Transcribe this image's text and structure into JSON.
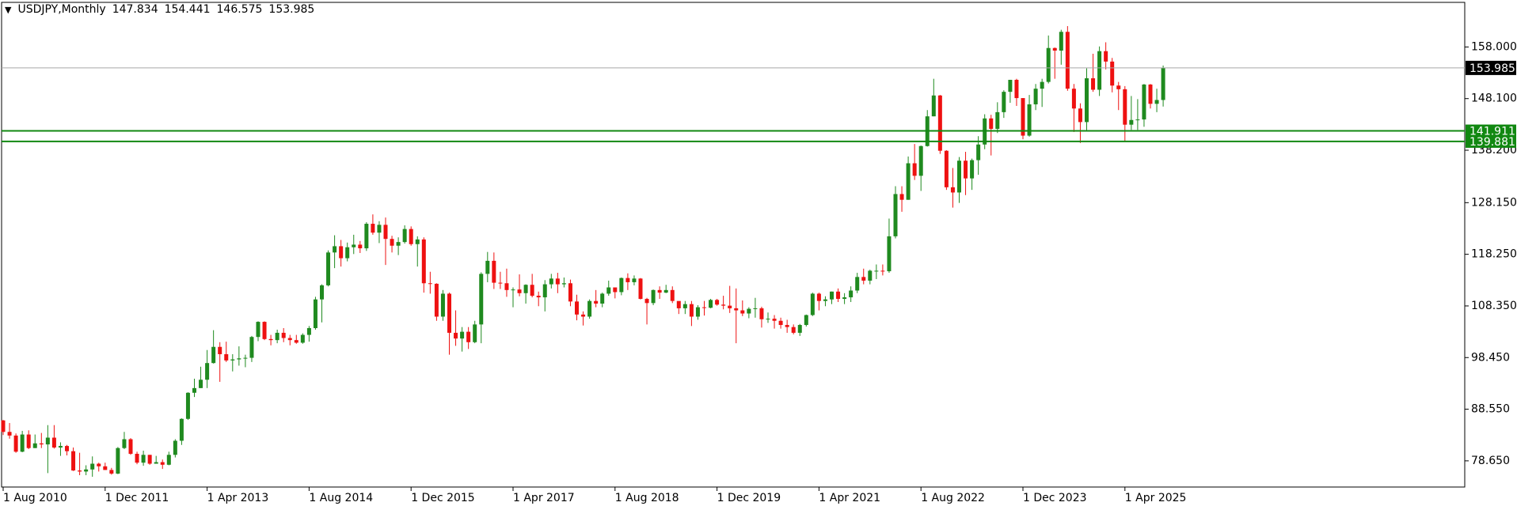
{
  "chart_data": {
    "type": "candlestick",
    "title": "USDJPY,Monthly",
    "bull_color": "#1f8a1f",
    "bear_color": "#ee1111",
    "bid_line_color": "#a6a6a6",
    "level_color": "#118811",
    "levels": [
      141.911,
      139.881
    ],
    "ylim": [
      73.63,
      166.55
    ],
    "yticks": [
      {
        "value": 78.65,
        "label": "78.650"
      },
      {
        "value": 88.55,
        "label": "88.550"
      },
      {
        "value": 98.45,
        "label": "98.450"
      },
      {
        "value": 108.35,
        "label": "108.350"
      },
      {
        "value": 118.25,
        "label": "118.250"
      },
      {
        "value": 128.15,
        "label": "128.150"
      },
      {
        "value": 138.2,
        "label": "138.200"
      },
      {
        "value": 148.1,
        "label": "148.100"
      },
      {
        "value": 158.0,
        "label": "158.000"
      }
    ],
    "categories": [
      "1 Aug 2010",
      null,
      null,
      null,
      null,
      null,
      null,
      null,
      null,
      null,
      null,
      null,
      null,
      null,
      null,
      null,
      "1 Dec 2011",
      null,
      null,
      null,
      null,
      null,
      null,
      null,
      null,
      null,
      null,
      null,
      null,
      null,
      null,
      null,
      "1 Apr 2013",
      null,
      null,
      null,
      null,
      null,
      null,
      null,
      null,
      null,
      null,
      null,
      null,
      null,
      null,
      null,
      "1 Aug 2014",
      null,
      null,
      null,
      null,
      null,
      null,
      null,
      null,
      null,
      null,
      null,
      null,
      null,
      null,
      null,
      "1 Dec 2015",
      null,
      null,
      null,
      null,
      null,
      null,
      null,
      null,
      null,
      null,
      null,
      null,
      null,
      null,
      null,
      "1 Apr 2017",
      null,
      null,
      null,
      null,
      null,
      null,
      null,
      null,
      null,
      null,
      null,
      null,
      null,
      null,
      null,
      "1 Aug 2018",
      null,
      null,
      null,
      null,
      null,
      null,
      null,
      null,
      null,
      null,
      null,
      null,
      null,
      null,
      null,
      "1 Dec 2019",
      null,
      null,
      null,
      null,
      null,
      null,
      null,
      null,
      null,
      null,
      null,
      null,
      null,
      null,
      null,
      "1 Apr 2021",
      null,
      null,
      null,
      null,
      null,
      null,
      null,
      null,
      null,
      null,
      null,
      null,
      null,
      null,
      null,
      "1 Aug 2022",
      null,
      null,
      null,
      null,
      null,
      null,
      null,
      null,
      null,
      null,
      null,
      null,
      null,
      null,
      null,
      "1 Dec 2023",
      null,
      null,
      null,
      null,
      null,
      null,
      null,
      null,
      null,
      null,
      null,
      null,
      null,
      null,
      null,
      "1 Apr 2025",
      null,
      null,
      null,
      null,
      null,
      null
    ],
    "open": [
      86.4,
      84.2,
      83.5,
      80.4,
      83.7,
      81.1,
      82.0,
      81.8,
      83.1,
      81.2,
      81.5,
      80.5,
      76.8,
      76.6,
      77.0,
      78.1,
      77.6,
      76.9,
      76.2,
      81.1,
      82.8,
      80.0,
      78.3,
      79.8,
      78.1,
      78.4,
      77.9,
      79.8,
      82.5,
      86.7,
      91.7,
      92.6,
      94.2,
      97.4,
      100.5,
      99.1,
      97.9,
      98.1,
      98.3,
      98.4,
      102.4,
      105.3,
      102.0,
      101.8,
      103.2,
      102.2,
      101.8,
      101.3,
      102.8,
      104.1,
      109.6,
      112.3,
      118.6,
      119.8,
      117.5,
      119.6,
      120.1,
      119.4,
      124.1,
      122.4,
      123.9,
      121.2,
      119.9,
      120.6,
      123.1,
      120.2,
      121.1,
      112.7,
      112.6,
      106.3,
      110.7,
      103.2,
      102.1,
      103.4,
      101.4,
      104.8,
      114.5,
      117.0,
      112.8,
      112.7,
      111.4,
      111.5,
      110.8,
      112.4,
      110.3,
      110.0,
      112.5,
      113.6,
      112.5,
      112.7,
      109.2,
      106.7,
      106.3,
      109.3,
      108.8,
      110.7,
      111.9,
      111.0,
      113.7,
      112.9,
      113.6,
      109.7,
      108.9,
      111.4,
      110.9,
      111.4,
      109.3,
      107.9,
      108.7,
      106.3,
      108.1,
      108.0,
      109.5,
      108.6,
      108.4,
      107.9,
      107.5,
      106.9,
      107.8,
      107.9,
      105.8,
      105.9,
      105.5,
      104.7,
      104.3,
      103.2,
      104.7,
      106.6,
      110.7,
      109.3,
      109.6,
      111.1,
      109.7,
      110.0,
      111.3,
      113.9,
      113.2,
      115.1,
      115.1,
      115.0,
      121.7,
      129.8,
      128.7,
      135.7,
      133.3,
      139.0,
      144.7,
      148.7,
      138.1,
      131.1,
      130.1,
      136.2,
      132.8,
      136.3,
      139.3,
      144.3,
      142.3,
      145.5,
      149.4,
      151.7,
      148.2,
      141.0,
      147.0,
      150.0,
      151.3,
      157.8,
      157.3,
      160.9,
      150.0,
      146.2,
      143.6,
      152.0,
      149.8,
      157.2,
      155.2,
      150.6,
      149.9,
      143.1,
      144.0,
      144.1,
      150.8,
      147.1,
      147.834
    ],
    "high": [
      86.5,
      85.9,
      83.9,
      84.4,
      84.5,
      83.7,
      84.0,
      85.5,
      85.5,
      82.2,
      81.7,
      81.2,
      80.2,
      77.8,
      79.5,
      78.3,
      78.3,
      77.3,
      81.3,
      84.2,
      83.0,
      80.4,
      80.6,
      79.8,
      79.6,
      78.9,
      80.4,
      82.8,
      86.8,
      91.8,
      94.4,
      96.7,
      99.9,
      103.7,
      101.4,
      101.5,
      99.1,
      100.6,
      99.0,
      102.6,
      105.4,
      105.4,
      102.8,
      103.8,
      104.1,
      102.8,
      102.8,
      103.1,
      104.5,
      110.1,
      112.5,
      119.0,
      121.9,
      121.0,
      120.5,
      122.0,
      120.8,
      124.4,
      125.9,
      124.6,
      125.3,
      121.8,
      121.5,
      123.8,
      123.6,
      121.7,
      121.5,
      114.9,
      112.7,
      111.4,
      110.9,
      107.5,
      104.3,
      104.3,
      105.5,
      114.8,
      118.7,
      118.6,
      114.9,
      115.5,
      111.9,
      114.4,
      112.5,
      114.5,
      111.1,
      113.3,
      114.5,
      114.7,
      113.8,
      113.4,
      110.5,
      107.3,
      109.6,
      111.4,
      110.9,
      113.2,
      111.8,
      113.8,
      114.6,
      114.2,
      113.7,
      109.9,
      111.5,
      112.1,
      112.4,
      112.1,
      109.0,
      109.3,
      109.3,
      108.5,
      109.3,
      109.7,
      109.7,
      110.3,
      112.2,
      111.7,
      109.4,
      108.1,
      109.9,
      108.2,
      107.1,
      106.6,
      106.1,
      105.7,
      104.8,
      104.9,
      106.7,
      110.9,
      110.9,
      110.2,
      111.1,
      111.7,
      110.8,
      112.1,
      114.7,
      115.5,
      115.3,
      116.3,
      116.3,
      125.1,
      131.3,
      131.3,
      137.0,
      139.4,
      139.1,
      145.9,
      151.9,
      148.8,
      138.2,
      134.8,
      136.9,
      137.9,
      136.6,
      140.9,
      145.1,
      145.0,
      147.4,
      149.7,
      151.7,
      151.9,
      148.0,
      148.8,
      150.9,
      151.9,
      160.2,
      157.9,
      161.3,
      162.0,
      150.9,
      147.2,
      153.9,
      156.7,
      158.1,
      158.9,
      155.9,
      151.3,
      150.5,
      148.6,
      148.0,
      150.9,
      150.9,
      150.0,
      154.441
    ],
    "low": [
      83.6,
      82.9,
      80.2,
      80.3,
      80.9,
      81.1,
      81.1,
      76.3,
      81.0,
      79.6,
      79.7,
      76.7,
      75.9,
      75.9,
      75.6,
      76.6,
      76.9,
      76.0,
      76.1,
      80.9,
      79.8,
      78.0,
      77.7,
      77.9,
      78.1,
      77.1,
      77.8,
      79.3,
      81.7,
      86.5,
      90.9,
      92.6,
      92.6,
      97.3,
      93.8,
      97.6,
      95.8,
      96.9,
      96.6,
      97.6,
      101.6,
      101.8,
      100.8,
      101.2,
      101.4,
      100.8,
      101.1,
      101.1,
      101.5,
      103.8,
      105.2,
      112.1,
      115.6,
      115.9,
      116.9,
      118.3,
      118.5,
      118.9,
      122.0,
      120.4,
      116.2,
      118.6,
      118.1,
      120.3,
      119.9,
      115.9,
      110.9,
      110.7,
      105.5,
      105.5,
      99.0,
      100.7,
      99.6,
      100.1,
      101.2,
      101.2,
      112.9,
      111.6,
      111.6,
      110.1,
      108.1,
      110.2,
      108.8,
      110.0,
      108.3,
      107.3,
      111.7,
      110.8,
      111.9,
      108.3,
      105.6,
      104.6,
      105.9,
      108.1,
      108.1,
      110.3,
      109.8,
      110.4,
      111.4,
      112.3,
      109.6,
      104.8,
      108.5,
      109.7,
      110.8,
      108.9,
      106.8,
      106.8,
      104.5,
      105.7,
      106.5,
      107.9,
      108.4,
      107.7,
      107.0,
      101.2,
      106.4,
      105.99,
      106.1,
      104.2,
      105.1,
      104.0,
      104.0,
      103.2,
      102.9,
      102.6,
      104.4,
      106.4,
      107.5,
      108.3,
      108.7,
      109.1,
      108.7,
      109.1,
      110.8,
      112.5,
      112.5,
      113.5,
      114.2,
      114.7,
      121.3,
      126.4,
      128.7,
      132.5,
      130.4,
      138.9,
      144.7,
      137.5,
      130.6,
      127.2,
      128.1,
      129.6,
      130.6,
      133.5,
      138.4,
      137.2,
      141.5,
      144.4,
      147.3,
      146.7,
      140.3,
      140.8,
      145.9,
      146.5,
      151.0,
      151.9,
      154.6,
      149.6,
      141.7,
      139.6,
      142.0,
      149.4,
      148.6,
      153.7,
      149.3,
      145.9,
      139.9,
      142.1,
      142.1,
      142.7,
      146.2,
      145.5,
      146.575
    ],
    "close": [
      84.2,
      83.5,
      80.4,
      83.7,
      81.1,
      82.0,
      81.8,
      83.1,
      81.2,
      81.5,
      80.5,
      76.8,
      76.6,
      77.0,
      78.1,
      77.6,
      76.9,
      76.2,
      81.1,
      82.8,
      80.0,
      78.3,
      79.8,
      78.1,
      78.4,
      77.9,
      79.8,
      82.5,
      86.7,
      91.7,
      92.6,
      94.2,
      97.4,
      100.5,
      99.1,
      97.9,
      98.1,
      98.3,
      98.4,
      102.4,
      105.3,
      102.0,
      101.8,
      103.2,
      102.2,
      101.8,
      101.3,
      102.8,
      104.1,
      109.6,
      112.3,
      118.6,
      119.8,
      117.5,
      119.6,
      120.1,
      119.4,
      124.1,
      122.4,
      123.9,
      121.2,
      119.9,
      120.6,
      123.1,
      120.2,
      121.1,
      112.7,
      112.6,
      106.3,
      110.7,
      103.2,
      102.1,
      103.4,
      101.4,
      104.8,
      114.5,
      117.0,
      112.8,
      112.7,
      111.4,
      111.5,
      110.8,
      112.4,
      110.3,
      110.0,
      112.5,
      113.6,
      112.5,
      112.7,
      109.2,
      106.7,
      106.3,
      109.3,
      108.8,
      110.7,
      111.9,
      111.0,
      113.7,
      112.9,
      113.6,
      109.7,
      108.9,
      111.4,
      110.9,
      111.4,
      109.3,
      107.9,
      108.7,
      106.3,
      108.1,
      108.0,
      109.5,
      108.6,
      108.4,
      107.9,
      107.5,
      106.9,
      107.8,
      107.9,
      105.8,
      105.9,
      105.5,
      104.7,
      104.3,
      103.2,
      104.7,
      106.6,
      110.7,
      109.3,
      109.6,
      111.1,
      109.7,
      110.0,
      111.3,
      113.9,
      113.2,
      115.1,
      115.1,
      115.0,
      121.7,
      129.8,
      128.7,
      135.7,
      133.3,
      139.0,
      144.7,
      148.7,
      138.1,
      131.1,
      130.1,
      136.2,
      132.8,
      136.3,
      139.3,
      144.3,
      142.3,
      145.5,
      149.4,
      151.7,
      148.2,
      141.0,
      147.0,
      150.0,
      151.3,
      157.8,
      157.3,
      160.9,
      150.0,
      146.2,
      143.6,
      152.0,
      149.8,
      157.2,
      155.2,
      150.6,
      149.9,
      143.1,
      144.0,
      144.1,
      150.8,
      147.1,
      147.834,
      153.985
    ]
  }
}
